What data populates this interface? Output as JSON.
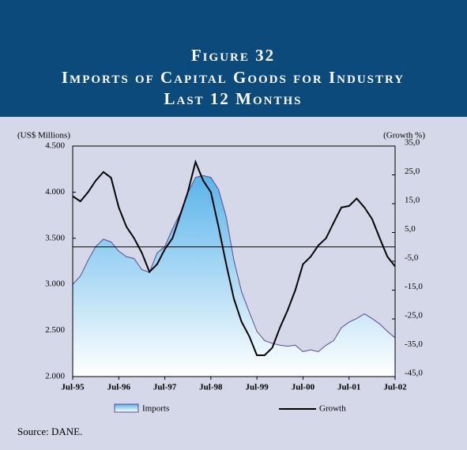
{
  "chart_data": {
    "type": "line",
    "title": [
      "Figure 32",
      "Imports of Capital Goods for Industry",
      "Last 12 Months"
    ],
    "y_label": "(US$ Millions)",
    "y2_label": "(Growth %)",
    "source": "Source: DANE.",
    "categories": [
      "Jul-95",
      null,
      null,
      null,
      null,
      null,
      "Jul-96",
      null,
      null,
      null,
      null,
      null,
      "Jul-97",
      null,
      null,
      null,
      null,
      null,
      "Jul-98",
      null,
      null,
      null,
      null,
      null,
      "Jul-99",
      null,
      null,
      null,
      null,
      null,
      "Jul-00",
      null,
      null,
      null,
      null,
      null,
      "Jul-01",
      null,
      null,
      null,
      null,
      null,
      "Jul-02"
    ],
    "series": [
      {
        "name": "Imports",
        "color": "#5a4a8a",
        "fill": "#5ab4ea",
        "values": [
          3000,
          3090,
          3260,
          3410,
          3490,
          3460,
          3360,
          3300,
          3280,
          3160,
          3130,
          3340,
          3410,
          3600,
          3770,
          3990,
          4160,
          4180,
          4160,
          4030,
          3730,
          3260,
          2920,
          2700,
          2490,
          2390,
          2360,
          2340,
          2330,
          2340,
          2270,
          2290,
          2270,
          2340,
          2390,
          2530,
          2590,
          2630,
          2680,
          2630,
          2570,
          2490,
          2420
        ]
      },
      {
        "name": "Growth",
        "color": "#000000",
        "axis": "y2",
        "values": [
          17.6,
          15.8,
          19,
          23,
          26,
          24,
          13.7,
          7,
          3,
          -2,
          -8.7,
          -6,
          -0.8,
          3,
          11,
          19,
          29.5,
          23,
          19,
          7,
          -6,
          -18,
          -26,
          -31,
          -37.6,
          -37.6,
          -35,
          -28,
          -22,
          -15,
          -6,
          -3.4,
          0.5,
          3,
          8.4,
          13.7,
          14.2,
          16.8,
          13.7,
          9.7,
          3,
          -3.4,
          -6.8
        ]
      }
    ],
    "ylim": [
      2000,
      4500
    ],
    "yticks": [
      {
        "value": 2000,
        "label": "2.000"
      },
      {
        "value": 2500,
        "label": "2.500"
      },
      {
        "value": 3000,
        "label": "3.000"
      },
      {
        "value": 3500,
        "label": "3.500"
      },
      {
        "value": 4000,
        "label": "4.000"
      },
      {
        "value": 4500,
        "label": "4.500"
      }
    ],
    "y2lim": [
      -45,
      35
    ],
    "y2ticks": [
      {
        "value": -45,
        "label": "-45,0"
      },
      {
        "value": -35,
        "label": "-35,0"
      },
      {
        "value": -25,
        "label": "-25,0"
      },
      {
        "value": -15,
        "label": "-15,0"
      },
      {
        "value": -5,
        "label": "-5,0"
      },
      {
        "value": 5,
        "label": "5,0"
      },
      {
        "value": 15,
        "label": "15,0"
      },
      {
        "value": 25,
        "label": "25,0"
      },
      {
        "value": 35,
        "label": "35,0"
      }
    ]
  }
}
